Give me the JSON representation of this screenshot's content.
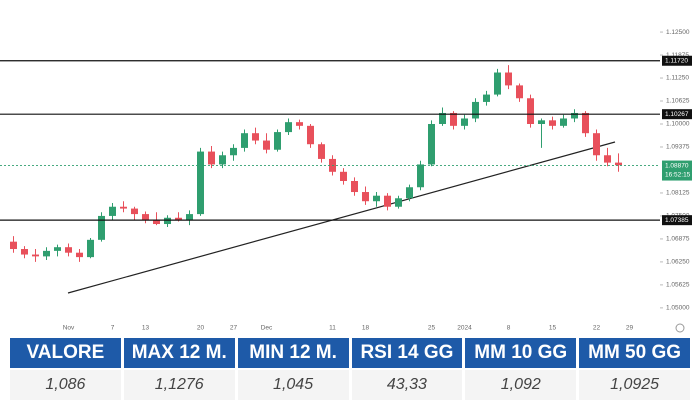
{
  "chart_data": {
    "type": "candlestick",
    "categories": [
      null,
      null,
      null,
      null,
      null,
      "Nov",
      null,
      null,
      null,
      "7",
      null,
      null,
      "13",
      null,
      null,
      null,
      null,
      "20",
      null,
      null,
      "27",
      null,
      null,
      "Dec",
      null,
      null,
      null,
      null,
      null,
      "11",
      null,
      null,
      "18",
      null,
      null,
      null,
      null,
      null,
      "25",
      null,
      null,
      "2024",
      null,
      null,
      null,
      "8",
      null,
      null,
      null,
      "15",
      null,
      null,
      null,
      "22",
      null,
      null,
      "29"
    ],
    "open": [
      1.068,
      1.066,
      1.0645,
      1.064,
      1.0655,
      1.0665,
      1.065,
      1.0638,
      1.0685,
      1.075,
      1.0775,
      1.077,
      1.0755,
      1.074,
      1.0728,
      1.0745,
      1.074,
      1.0755,
      1.0925,
      1.089,
      1.0915,
      1.0935,
      1.0975,
      1.0955,
      1.093,
      1.0978,
      1.1005,
      1.0995,
      1.0945,
      1.0905,
      1.087,
      1.0845,
      1.0815,
      1.079,
      1.0805,
      1.0775,
      1.0798,
      1.0828,
      1.089,
      1.1,
      1.103,
      1.0995,
      1.1015,
      1.106,
      1.108,
      1.114,
      1.1105,
      1.107,
      1.1,
      1.101,
      1.0995,
      1.1015,
      1.103,
      1.0975,
      1.0915,
      1.0895,
      null
    ],
    "high": [
      1.0695,
      1.0668,
      1.066,
      1.0665,
      1.0672,
      1.0675,
      1.066,
      1.069,
      1.076,
      1.0785,
      1.079,
      1.0775,
      1.0762,
      1.076,
      1.0752,
      1.076,
      1.0765,
      1.0935,
      1.094,
      1.0925,
      1.0945,
      1.0985,
      1.099,
      1.0975,
      1.0985,
      1.1015,
      1.1012,
      1.1,
      1.095,
      1.0915,
      1.088,
      1.0855,
      1.083,
      1.0815,
      1.0812,
      1.0805,
      1.0835,
      1.09,
      1.101,
      1.1045,
      1.1035,
      1.1025,
      1.107,
      1.109,
      1.115,
      1.116,
      1.111,
      1.108,
      1.1015,
      1.102,
      1.1025,
      1.104,
      1.1035,
      1.0985,
      1.0935,
      1.092,
      null
    ],
    "low": [
      1.065,
      1.0635,
      1.0625,
      1.063,
      1.064,
      1.064,
      1.0625,
      1.0635,
      1.068,
      1.074,
      1.076,
      1.074,
      1.073,
      1.0725,
      1.072,
      1.0735,
      1.0725,
      1.075,
      1.088,
      1.088,
      1.09,
      1.0925,
      1.0945,
      1.092,
      1.0925,
      1.097,
      1.0985,
      1.0935,
      1.0895,
      1.086,
      1.0835,
      1.0805,
      1.078,
      1.0775,
      1.0765,
      1.077,
      1.079,
      1.082,
      1.0885,
      1.0995,
      1.0985,
      1.0985,
      1.1005,
      1.105,
      1.1075,
      1.1095,
      1.106,
      1.099,
      1.0935,
      1.0985,
      1.099,
      1.1005,
      1.0965,
      1.09,
      1.0885,
      1.087,
      null
    ],
    "close": [
      1.066,
      1.0645,
      1.064,
      1.0655,
      1.0665,
      1.065,
      1.0638,
      1.0685,
      1.075,
      1.0775,
      1.077,
      1.0755,
      1.074,
      1.0728,
      1.0745,
      1.074,
      1.0755,
      1.0925,
      1.089,
      1.0915,
      1.0935,
      1.0975,
      1.0955,
      1.093,
      1.0978,
      1.1005,
      1.0995,
      1.0945,
      1.0905,
      1.087,
      1.0845,
      1.0815,
      1.079,
      1.0805,
      1.0775,
      1.0798,
      1.0828,
      1.089,
      1.1,
      1.103,
      1.0995,
      1.1015,
      1.106,
      1.108,
      1.114,
      1.1105,
      1.107,
      1.1,
      1.101,
      1.0995,
      1.1015,
      1.103,
      1.0975,
      1.0915,
      1.0895,
      1.0888,
      null
    ],
    "up_color": "#2f9e6f",
    "down_color": "#e8505b",
    "ylim": [
      1.0467,
      1.131
    ],
    "yticks": [
      {
        "value": 1.05,
        "label": "1.05000"
      },
      {
        "value": 1.05625,
        "label": "1.05625"
      },
      {
        "value": 1.0625,
        "label": "1.06250"
      },
      {
        "value": 1.06875,
        "label": "1.06875"
      },
      {
        "value": 1.075,
        "label": "1.07500"
      },
      {
        "value": 1.08125,
        "label": "1.08125"
      },
      {
        "value": 1.09375,
        "label": "1.09375"
      },
      {
        "value": 1.1,
        "label": "1.10000"
      },
      {
        "value": 1.10625,
        "label": "1.10625"
      },
      {
        "value": 1.1125,
        "label": "1.11250"
      },
      {
        "value": 1.11875,
        "label": "1.11875"
      },
      {
        "value": 1.125,
        "label": "1.12500"
      }
    ],
    "levels": [
      {
        "value": 1.1172,
        "label": "1.11720"
      },
      {
        "value": 1.10267,
        "label": "1.10267"
      },
      {
        "value": 1.07385,
        "label": "1.07385"
      }
    ],
    "last_price": {
      "value": 1.0887,
      "label": "1.08870"
    },
    "countdown": "16:52:15"
  },
  "table": {
    "header": [
      "VALORE",
      "MAX 12 M.",
      "MIN 12 M.",
      "RSI 14 GG",
      "MM 10 GG",
      "MM 50 GG"
    ],
    "rows": [
      [
        "1,086",
        "1,1276",
        "1,045",
        "43,33",
        "1,092",
        "1,0925"
      ]
    ]
  }
}
